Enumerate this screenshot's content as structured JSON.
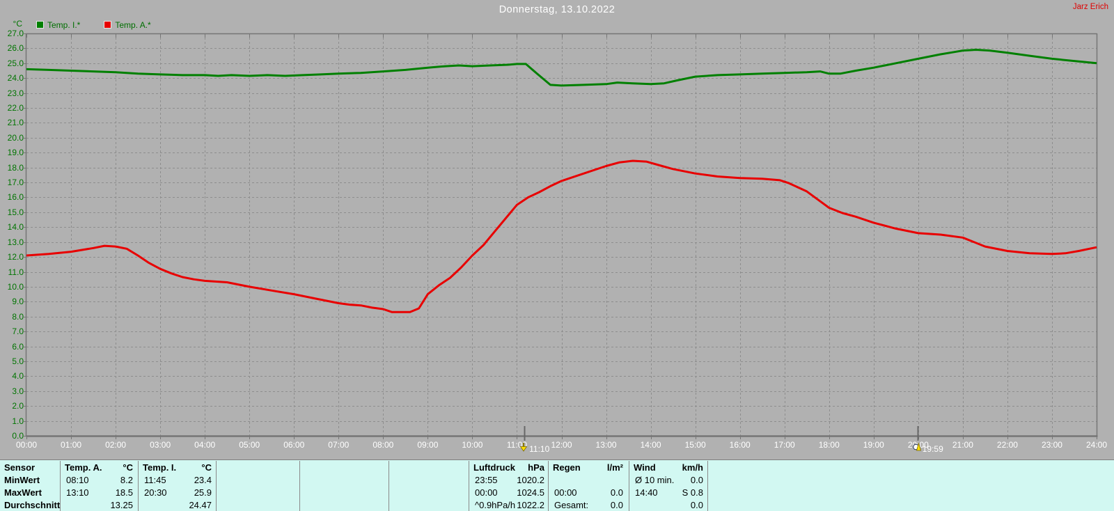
{
  "header": {
    "title": "Donnerstag, 13.10.2022",
    "author": "Jarz Erich"
  },
  "colors": {
    "background": "#b1b1b1",
    "grid": "#8d8d8d",
    "axis": "#757575",
    "y_label_green": "#007400",
    "x_label_white": "#ffffff",
    "temp_i_green": "#008000",
    "temp_a_red": "#e80000",
    "author_red": "#e00000",
    "table_background": "#d2f8f2",
    "marker_yellow": "#ffdf00"
  },
  "chart_data": {
    "type": "line",
    "title": "Donnerstag, 13.10.2022",
    "grid": true,
    "y_axis": {
      "unit": "°C",
      "min": 0,
      "max": 27,
      "step": 1
    },
    "x_axis": {
      "min": 0,
      "max": 24,
      "step": 1,
      "tick_labels": [
        "00:00",
        "01:00",
        "02:00",
        "03:00",
        "04:00",
        "05:00",
        "06:00",
        "07:00",
        "08:00",
        "09:00",
        "10:00",
        "11:00",
        "12:00",
        "13:00",
        "14:00",
        "15:00",
        "16:00",
        "17:00",
        "18:00",
        "19:00",
        "20:00",
        "21:00",
        "22:00",
        "23:00",
        "24:00"
      ]
    },
    "legend": [
      {
        "label": "Temp. I.*",
        "color": "#008000"
      },
      {
        "label": "Temp. A.*",
        "color": "#e80000"
      }
    ],
    "markers": [
      {
        "label": "11:10",
        "hour": 11.167,
        "icon": "down-arrow-icon"
      },
      {
        "label": "19:59",
        "hour": 19.983,
        "icon": "sunset-icon"
      }
    ],
    "series": [
      {
        "name": "Temp. I.*",
        "color": "#008000",
        "points": [
          [
            0,
            24.6
          ],
          [
            0.5,
            24.55
          ],
          [
            1,
            24.5
          ],
          [
            1.5,
            24.45
          ],
          [
            2,
            24.4
          ],
          [
            2.5,
            24.3
          ],
          [
            3,
            24.25
          ],
          [
            3.5,
            24.2
          ],
          [
            4,
            24.2
          ],
          [
            4.3,
            24.15
          ],
          [
            4.6,
            24.2
          ],
          [
            5,
            24.15
          ],
          [
            5.4,
            24.2
          ],
          [
            5.8,
            24.15
          ],
          [
            6.2,
            24.2
          ],
          [
            6.6,
            24.25
          ],
          [
            7,
            24.3
          ],
          [
            7.5,
            24.35
          ],
          [
            8,
            24.45
          ],
          [
            8.5,
            24.55
          ],
          [
            9,
            24.7
          ],
          [
            9.4,
            24.8
          ],
          [
            9.7,
            24.85
          ],
          [
            10,
            24.8
          ],
          [
            10.4,
            24.85
          ],
          [
            10.8,
            24.9
          ],
          [
            11,
            24.95
          ],
          [
            11.2,
            24.95
          ],
          [
            11.45,
            24.3
          ],
          [
            11.75,
            23.55
          ],
          [
            12,
            23.5
          ],
          [
            12.5,
            23.55
          ],
          [
            13,
            23.6
          ],
          [
            13.25,
            23.7
          ],
          [
            13.6,
            23.65
          ],
          [
            14,
            23.6
          ],
          [
            14.3,
            23.65
          ],
          [
            14.6,
            23.85
          ],
          [
            15,
            24.1
          ],
          [
            15.5,
            24.2
          ],
          [
            16,
            24.25
          ],
          [
            16.5,
            24.3
          ],
          [
            17,
            24.35
          ],
          [
            17.5,
            24.4
          ],
          [
            17.8,
            24.45
          ],
          [
            18,
            24.3
          ],
          [
            18.25,
            24.3
          ],
          [
            18.6,
            24.5
          ],
          [
            19,
            24.7
          ],
          [
            19.5,
            25.0
          ],
          [
            20,
            25.3
          ],
          [
            20.5,
            25.6
          ],
          [
            20.8,
            25.75
          ],
          [
            21,
            25.85
          ],
          [
            21.3,
            25.9
          ],
          [
            21.6,
            25.85
          ],
          [
            22,
            25.7
          ],
          [
            22.5,
            25.5
          ],
          [
            23,
            25.3
          ],
          [
            23.5,
            25.15
          ],
          [
            24,
            25.0
          ]
        ]
      },
      {
        "name": "Temp. A.*",
        "color": "#e80000",
        "points": [
          [
            0,
            12.1
          ],
          [
            0.5,
            12.2
          ],
          [
            1,
            12.35
          ],
          [
            1.5,
            12.6
          ],
          [
            1.75,
            12.75
          ],
          [
            2,
            12.7
          ],
          [
            2.25,
            12.55
          ],
          [
            2.5,
            12.1
          ],
          [
            2.75,
            11.6
          ],
          [
            3,
            11.2
          ],
          [
            3.25,
            10.9
          ],
          [
            3.5,
            10.65
          ],
          [
            3.75,
            10.5
          ],
          [
            4,
            10.4
          ],
          [
            4.5,
            10.3
          ],
          [
            5,
            10.0
          ],
          [
            5.5,
            9.75
          ],
          [
            6,
            9.5
          ],
          [
            6.5,
            9.2
          ],
          [
            7,
            8.9
          ],
          [
            7.25,
            8.8
          ],
          [
            7.5,
            8.75
          ],
          [
            7.75,
            8.6
          ],
          [
            8,
            8.5
          ],
          [
            8.2,
            8.3
          ],
          [
            8.6,
            8.3
          ],
          [
            8.8,
            8.55
          ],
          [
            9,
            9.5
          ],
          [
            9.25,
            10.1
          ],
          [
            9.5,
            10.6
          ],
          [
            9.75,
            11.3
          ],
          [
            10,
            12.1
          ],
          [
            10.25,
            12.8
          ],
          [
            10.5,
            13.7
          ],
          [
            10.75,
            14.6
          ],
          [
            11,
            15.5
          ],
          [
            11.25,
            16.0
          ],
          [
            11.5,
            16.35
          ],
          [
            11.75,
            16.75
          ],
          [
            12,
            17.1
          ],
          [
            12.5,
            17.6
          ],
          [
            13,
            18.1
          ],
          [
            13.3,
            18.35
          ],
          [
            13.6,
            18.45
          ],
          [
            13.9,
            18.4
          ],
          [
            14.2,
            18.15
          ],
          [
            14.5,
            17.9
          ],
          [
            15,
            17.6
          ],
          [
            15.5,
            17.4
          ],
          [
            16,
            17.3
          ],
          [
            16.5,
            17.25
          ],
          [
            16.9,
            17.15
          ],
          [
            17.1,
            16.95
          ],
          [
            17.5,
            16.4
          ],
          [
            17.75,
            15.85
          ],
          [
            18,
            15.3
          ],
          [
            18.3,
            14.95
          ],
          [
            18.6,
            14.7
          ],
          [
            19,
            14.3
          ],
          [
            19.5,
            13.9
          ],
          [
            20,
            13.6
          ],
          [
            20.5,
            13.5
          ],
          [
            21,
            13.3
          ],
          [
            21.5,
            12.7
          ],
          [
            22,
            12.4
          ],
          [
            22.5,
            12.25
          ],
          [
            23,
            12.2
          ],
          [
            23.3,
            12.25
          ],
          [
            23.6,
            12.4
          ],
          [
            24,
            12.65
          ]
        ]
      }
    ]
  },
  "stats_table": {
    "row_labels": [
      "Sensor",
      "MinWert",
      "MaxWert",
      "Durchschnitt"
    ],
    "groups": [
      {
        "name": "temp-a",
        "header": "Temp. A.",
        "unit": "°C",
        "rows": [
          [
            "08:10",
            "8.2"
          ],
          [
            "13:10",
            "18.5"
          ],
          [
            "",
            "13.25"
          ]
        ]
      },
      {
        "name": "temp-i",
        "header": "Temp. I.",
        "unit": "°C",
        "rows": [
          [
            "11:45",
            "23.4"
          ],
          [
            "20:30",
            "25.9"
          ],
          [
            "",
            "24.47"
          ]
        ]
      },
      {
        "name": "empty-1",
        "header": "",
        "unit": "",
        "rows": [
          [
            "",
            ""
          ],
          [
            "",
            ""
          ],
          [
            "",
            ""
          ]
        ]
      },
      {
        "name": "empty-2",
        "header": "",
        "unit": "",
        "rows": [
          [
            "",
            ""
          ],
          [
            "",
            ""
          ],
          [
            "",
            ""
          ]
        ]
      },
      {
        "name": "empty-3",
        "header": "",
        "unit": "",
        "rows": [
          [
            "",
            ""
          ],
          [
            "",
            ""
          ],
          [
            "",
            ""
          ]
        ]
      },
      {
        "name": "luftdruck",
        "header": "Luftdruck",
        "unit": "hPa",
        "rows": [
          [
            "23:55",
            "1020.2"
          ],
          [
            "00:00",
            "1024.5"
          ],
          [
            "^0.9hPa/h",
            "1022.2"
          ]
        ]
      },
      {
        "name": "regen",
        "header": "Regen",
        "unit": "l/m²",
        "rows": [
          [
            "",
            ""
          ],
          [
            "00:00",
            "0.0"
          ],
          [
            "Gesamt:",
            "0.0"
          ]
        ]
      },
      {
        "name": "wind",
        "header": "Wind",
        "unit": "km/h",
        "rows": [
          [
            "Ø 10 min.",
            "0.0"
          ],
          [
            "14:40",
            "S 0.8"
          ],
          [
            "",
            "0.0"
          ]
        ]
      }
    ]
  }
}
